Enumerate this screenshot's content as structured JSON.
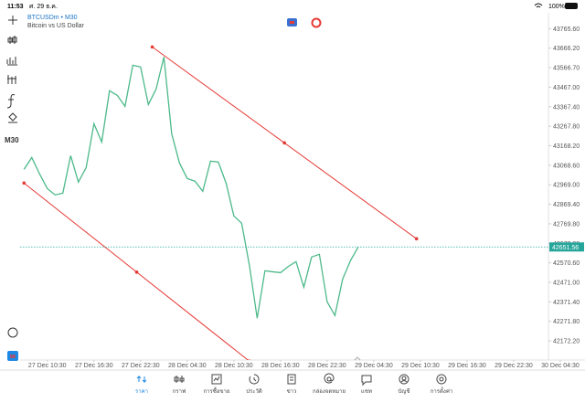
{
  "status_bar": {
    "time": "11:53",
    "date": "ศ. 29 ธ.ค.",
    "battery": "100%"
  },
  "header": {
    "symbol": "BTCUSDm • M30",
    "description": "Bitcoin vs US Dollar"
  },
  "toolbar": {
    "timeframe": "M30"
  },
  "tabs": [
    "ราคา",
    "กราฟ",
    "การซื้อขาย",
    "ประวัติ",
    "ข่าว",
    "กล่องจดหมาย",
    "แชท",
    "บัญชี",
    "การตั้งค่า"
  ],
  "chart_data": {
    "type": "line",
    "x": [
      "27 Dec 07:30",
      "27 Dec 08:30",
      "27 Dec 09:30",
      "27 Dec 10:30",
      "27 Dec 11:30",
      "27 Dec 12:30",
      "27 Dec 13:30",
      "27 Dec 14:30",
      "27 Dec 15:30",
      "27 Dec 16:30",
      "27 Dec 17:30",
      "27 Dec 18:30",
      "27 Dec 19:30",
      "27 Dec 20:30",
      "27 Dec 21:30",
      "27 Dec 22:30",
      "27 Dec 23:30",
      "28 Dec 00:30",
      "28 Dec 01:30",
      "28 Dec 02:30",
      "28 Dec 03:30",
      "28 Dec 04:30",
      "28 Dec 05:30",
      "28 Dec 06:30",
      "28 Dec 07:30",
      "28 Dec 08:30",
      "28 Dec 09:30",
      "28 Dec 10:30",
      "28 Dec 11:30",
      "28 Dec 12:30",
      "28 Dec 13:30",
      "28 Dec 14:30",
      "28 Dec 15:30",
      "28 Dec 16:30",
      "28 Dec 17:30",
      "28 Dec 18:30",
      "28 Dec 19:30",
      "28 Dec 20:30",
      "28 Dec 21:30",
      "28 Dec 22:30",
      "28 Dec 23:30",
      "29 Dec 00:30",
      "29 Dec 01:30",
      "29 Dec 02:30"
    ],
    "series": [
      {
        "name": "BTCUSDm",
        "color": "#4cb98a",
        "values": [
          43047.6,
          43108.3,
          43024.3,
          42949.7,
          42917.1,
          42926.4,
          43117.6,
          42982.4,
          43057.0,
          43280.8,
          43187.5,
          43448.6,
          43425.3,
          43369.3,
          43579.1,
          43570.2,
          43378.7,
          43457.9,
          43621.1,
          43229.5,
          43080.3,
          43001.0,
          42987.0,
          42935.8,
          43089.6,
          43084.9,
          42977.7,
          42809.9,
          42772.6,
          42558.1,
          42287.7,
          42530.2,
          42525.0,
          42520.4,
          42552.0,
          42576.8,
          42446.3,
          42600.1,
          42614.1,
          42371.6,
          42301.7,
          42488.2,
          42581.5,
          42651.56
        ]
      }
    ],
    "last_price": 42651.56,
    "last_price_color": "#26a69a",
    "trendlines": [
      {
        "color": "#e53935",
        "x": [
          "28 Dec 00:00",
          "29 Dec 10:00"
        ],
        "y": [
          43672.4,
          42693.3
        ]
      },
      {
        "color": "#e53935",
        "x": [
          "27 Dec 07:30",
          "28 Dec 12:30"
        ],
        "y": [
          42977.7,
          42068.6
        ]
      }
    ],
    "xlim": [
      "27 Dec 07:00",
      "30 Dec 06:30"
    ],
    "xticks": [
      "27 Dec 10:30",
      "27 Dec 16:30",
      "27 Dec 22:30",
      "28 Dec 04:30",
      "28 Dec 10:30",
      "28 Dec 16:30",
      "28 Dec 22:30",
      "29 Dec 04:30",
      "29 Dec 10:30",
      "29 Dec 16:30",
      "29 Dec 22:30",
      "30 Dec 04:30"
    ],
    "ylim": [
      42084,
      43800
    ],
    "yticks": [
      {
        "value": 43765.6,
        "label": "43765.60"
      },
      {
        "value": 43666.2,
        "label": "43666.20"
      },
      {
        "value": 43566.7,
        "label": "43566.70"
      },
      {
        "value": 43467,
        "label": "43467.00"
      },
      {
        "value": 43367.4,
        "label": "43367.40"
      },
      {
        "value": 43267.8,
        "label": "43267.80"
      },
      {
        "value": 43168.2,
        "label": "43168.20"
      },
      {
        "value": 43068.6,
        "label": "43068.60"
      },
      {
        "value": 42969,
        "label": "42969.00"
      },
      {
        "value": 42869.4,
        "label": "42869.40"
      },
      {
        "value": 42769.8,
        "label": "42769.80"
      },
      {
        "value": 42670.2,
        "label": "42670.20"
      },
      {
        "value": 42570.6,
        "label": "42570.60"
      },
      {
        "value": 42471,
        "label": "42471.00"
      },
      {
        "value": 42371.4,
        "label": "42371.40"
      },
      {
        "value": 42271.8,
        "label": "42271.80"
      },
      {
        "value": 42172.2,
        "label": "42172.20"
      }
    ],
    "grid": false
  }
}
